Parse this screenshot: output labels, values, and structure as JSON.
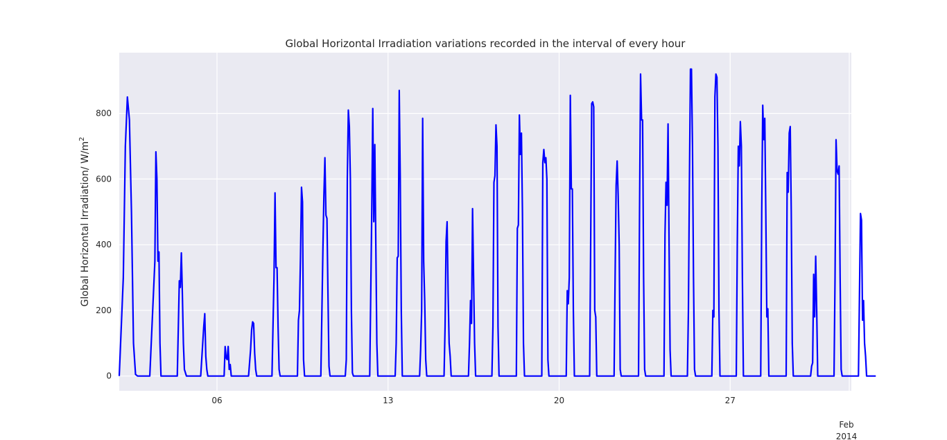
{
  "chart_data": {
    "type": "line",
    "title": "Global Horizontal Irradiation variations recorded in the interval of every hour",
    "ylabel_main": "Global Horizontal Irradiation/ W/m",
    "ylabel_sup": "2",
    "xlabel": "",
    "x_start": "2014-01-02",
    "x_end": "2014-01-31T23:00",
    "xlim": [
      "2014-01-02",
      "2014-01-31T23:00"
    ],
    "ylim": [
      -45,
      985
    ],
    "y_ticks": [
      0,
      200,
      400,
      600,
      800
    ],
    "y_tick_labels": [
      "0",
      "200",
      "400",
      "600",
      "800"
    ],
    "x_ticks": [
      "2014-01-06",
      "2014-01-13",
      "2014-01-20",
      "2014-01-27",
      "2014-02-01"
    ],
    "x_tick_labels": [
      "06",
      "13",
      "20",
      "27",
      "Feb"
    ],
    "x_offset_label": "2014",
    "grid": true,
    "background": "#eaeaf2",
    "line_color": "#0000ff",
    "series": [
      {
        "values": [
          [
            0,
            0
          ],
          [
            4,
            300
          ],
          [
            6,
            700
          ],
          [
            8,
            850
          ],
          [
            10,
            780
          ],
          [
            12,
            500
          ],
          [
            14,
            100
          ],
          [
            16,
            5
          ],
          [
            18,
            0
          ],
          [
            24,
            0
          ],
          [
            30,
            0
          ],
          [
            35,
            350
          ],
          [
            36,
            683
          ],
          [
            37,
            600
          ],
          [
            38,
            350
          ],
          [
            39,
            378
          ],
          [
            40,
            100
          ],
          [
            41,
            0
          ],
          [
            48,
            0
          ],
          [
            57,
            0
          ],
          [
            59,
            290
          ],
          [
            60,
            270
          ],
          [
            61,
            375
          ],
          [
            62,
            250
          ],
          [
            63,
            100
          ],
          [
            64,
            20
          ],
          [
            66,
            0
          ],
          [
            72,
            0
          ],
          [
            80,
            0
          ],
          [
            82,
            100
          ],
          [
            83,
            150
          ],
          [
            84,
            190
          ],
          [
            85,
            60
          ],
          [
            86,
            20
          ],
          [
            87,
            0
          ],
          [
            96,
            0
          ],
          [
            103,
            0
          ],
          [
            104,
            90
          ],
          [
            105,
            55
          ],
          [
            106,
            50
          ],
          [
            107,
            90
          ],
          [
            108,
            20
          ],
          [
            109,
            35
          ],
          [
            110,
            0
          ],
          [
            120,
            0
          ],
          [
            127,
            0
          ],
          [
            129,
            80
          ],
          [
            130,
            140
          ],
          [
            131,
            165
          ],
          [
            132,
            160
          ],
          [
            133,
            70
          ],
          [
            134,
            20
          ],
          [
            135,
            0
          ],
          [
            144,
            0
          ],
          [
            150,
            0
          ],
          [
            152,
            300
          ],
          [
            153,
            558
          ],
          [
            154,
            330
          ],
          [
            155,
            330
          ],
          [
            156,
            150
          ],
          [
            157,
            20
          ],
          [
            158,
            0
          ],
          [
            168,
            0
          ],
          [
            175,
            0
          ],
          [
            176,
            170
          ],
          [
            177,
            200
          ],
          [
            178,
            360
          ],
          [
            179,
            575
          ],
          [
            180,
            530
          ],
          [
            181,
            50
          ],
          [
            182,
            0
          ],
          [
            192,
            0
          ],
          [
            198,
            0
          ],
          [
            200,
            380
          ],
          [
            201,
            550
          ],
          [
            202,
            665
          ],
          [
            203,
            490
          ],
          [
            204,
            480
          ],
          [
            205,
            250
          ],
          [
            206,
            30
          ],
          [
            207,
            0
          ],
          [
            216,
            0
          ],
          [
            222,
            0
          ],
          [
            223,
            50
          ],
          [
            224,
            600
          ],
          [
            225,
            810
          ],
          [
            226,
            760
          ],
          [
            227,
            600
          ],
          [
            228,
            200
          ],
          [
            229,
            10
          ],
          [
            230,
            0
          ],
          [
            240,
            0
          ],
          [
            246,
            0
          ],
          [
            248,
            500
          ],
          [
            249,
            815
          ],
          [
            250,
            470
          ],
          [
            251,
            705
          ],
          [
            252,
            400
          ],
          [
            253,
            100
          ],
          [
            254,
            0
          ],
          [
            264,
            0
          ],
          [
            271,
            0
          ],
          [
            272,
            100
          ],
          [
            273,
            360
          ],
          [
            274,
            365
          ],
          [
            275,
            870
          ],
          [
            276,
            600
          ],
          [
            277,
            200
          ],
          [
            278,
            0
          ],
          [
            288,
            0
          ],
          [
            295,
            0
          ],
          [
            296,
            80
          ],
          [
            297,
            200
          ],
          [
            298,
            785
          ],
          [
            299,
            350
          ],
          [
            300,
            230
          ],
          [
            301,
            50
          ],
          [
            302,
            0
          ],
          [
            312,
            0
          ],
          [
            319,
            0
          ],
          [
            320,
            150
          ],
          [
            321,
            410
          ],
          [
            322,
            470
          ],
          [
            323,
            250
          ],
          [
            324,
            100
          ],
          [
            325,
            60
          ],
          [
            326,
            0
          ],
          [
            336,
            0
          ],
          [
            343,
            0
          ],
          [
            344,
            100
          ],
          [
            345,
            230
          ],
          [
            346,
            160
          ],
          [
            347,
            510
          ],
          [
            348,
            300
          ],
          [
            349,
            100
          ],
          [
            350,
            0
          ],
          [
            360,
            0
          ],
          [
            366,
            0
          ],
          [
            367,
            150
          ],
          [
            368,
            590
          ],
          [
            369,
            610
          ],
          [
            370,
            765
          ],
          [
            371,
            700
          ],
          [
            372,
            150
          ],
          [
            373,
            0
          ],
          [
            384,
            0
          ],
          [
            390,
            0
          ],
          [
            391,
            450
          ],
          [
            392,
            460
          ],
          [
            393,
            795
          ],
          [
            394,
            675
          ],
          [
            395,
            740
          ],
          [
            396,
            500
          ],
          [
            397,
            100
          ],
          [
            398,
            0
          ],
          [
            408,
            0
          ],
          [
            415,
            0
          ],
          [
            416,
            650
          ],
          [
            417,
            690
          ],
          [
            418,
            650
          ],
          [
            419,
            665
          ],
          [
            420,
            600
          ],
          [
            421,
            50
          ],
          [
            422,
            0
          ],
          [
            432,
            0
          ],
          [
            439,
            0
          ],
          [
            440,
            260
          ],
          [
            441,
            220
          ],
          [
            442,
            300
          ],
          [
            443,
            855
          ],
          [
            444,
            570
          ],
          [
            445,
            570
          ],
          [
            446,
            200
          ],
          [
            447,
            0
          ],
          [
            456,
            0
          ],
          [
            462,
            0
          ],
          [
            463,
            400
          ],
          [
            464,
            830
          ],
          [
            465,
            835
          ],
          [
            466,
            820
          ],
          [
            467,
            200
          ],
          [
            468,
            180
          ],
          [
            469,
            0
          ],
          [
            480,
            0
          ],
          [
            486,
            0
          ],
          [
            487,
            300
          ],
          [
            488,
            580
          ],
          [
            489,
            655
          ],
          [
            490,
            550
          ],
          [
            491,
            400
          ],
          [
            492,
            20
          ],
          [
            493,
            0
          ],
          [
            504,
            0
          ],
          [
            510,
            0
          ],
          [
            511,
            500
          ],
          [
            512,
            920
          ],
          [
            513,
            780
          ],
          [
            514,
            780
          ],
          [
            515,
            300
          ],
          [
            516,
            20
          ],
          [
            517,
            0
          ],
          [
            528,
            0
          ],
          [
            535,
            0
          ],
          [
            536,
            430
          ],
          [
            537,
            590
          ],
          [
            538,
            520
          ],
          [
            539,
            768
          ],
          [
            540,
            400
          ],
          [
            541,
            80
          ],
          [
            542,
            0
          ],
          [
            552,
            0
          ],
          [
            558,
            0
          ],
          [
            559,
            200
          ],
          [
            560,
            600
          ],
          [
            561,
            935
          ],
          [
            562,
            935
          ],
          [
            563,
            700
          ],
          [
            564,
            300
          ],
          [
            565,
            20
          ],
          [
            566,
            0
          ],
          [
            576,
            0
          ],
          [
            582,
            0
          ],
          [
            583,
            200
          ],
          [
            584,
            180
          ],
          [
            585,
            850
          ],
          [
            586,
            920
          ],
          [
            587,
            910
          ],
          [
            588,
            700
          ],
          [
            589,
            200
          ],
          [
            590,
            0
          ],
          [
            600,
            0
          ],
          [
            606,
            0
          ],
          [
            607,
            400
          ],
          [
            608,
            700
          ],
          [
            609,
            640
          ],
          [
            610,
            775
          ],
          [
            611,
            700
          ],
          [
            612,
            300
          ],
          [
            613,
            0
          ],
          [
            624,
            0
          ],
          [
            630,
            0
          ],
          [
            631,
            500
          ],
          [
            632,
            825
          ],
          [
            633,
            720
          ],
          [
            634,
            785
          ],
          [
            635,
            500
          ],
          [
            636,
            180
          ],
          [
            637,
            205
          ],
          [
            638,
            0
          ],
          [
            648,
            0
          ],
          [
            655,
            0
          ],
          [
            656,
            620
          ],
          [
            657,
            560
          ],
          [
            658,
            740
          ],
          [
            659,
            760
          ],
          [
            660,
            500
          ],
          [
            661,
            100
          ],
          [
            662,
            0
          ],
          [
            672,
            0
          ],
          [
            679,
            0
          ],
          [
            680,
            30
          ],
          [
            681,
            40
          ],
          [
            682,
            310
          ],
          [
            683,
            180
          ],
          [
            684,
            365
          ],
          [
            685,
            200
          ],
          [
            686,
            0
          ],
          [
            696,
            0
          ],
          [
            702,
            0
          ],
          [
            703,
            300
          ],
          [
            704,
            720
          ],
          [
            705,
            625
          ],
          [
            706,
            615
          ],
          [
            707,
            640
          ],
          [
            708,
            300
          ],
          [
            709,
            20
          ],
          [
            710,
            0
          ],
          [
            720,
            0
          ],
          [
            726,
            0
          ],
          [
            727,
            250
          ],
          [
            728,
            495
          ],
          [
            729,
            475
          ],
          [
            730,
            170
          ],
          [
            731,
            230
          ],
          [
            732,
            100
          ],
          [
            733,
            60
          ],
          [
            734,
            0
          ],
          [
            743,
            0
          ]
        ]
      }
    ]
  }
}
